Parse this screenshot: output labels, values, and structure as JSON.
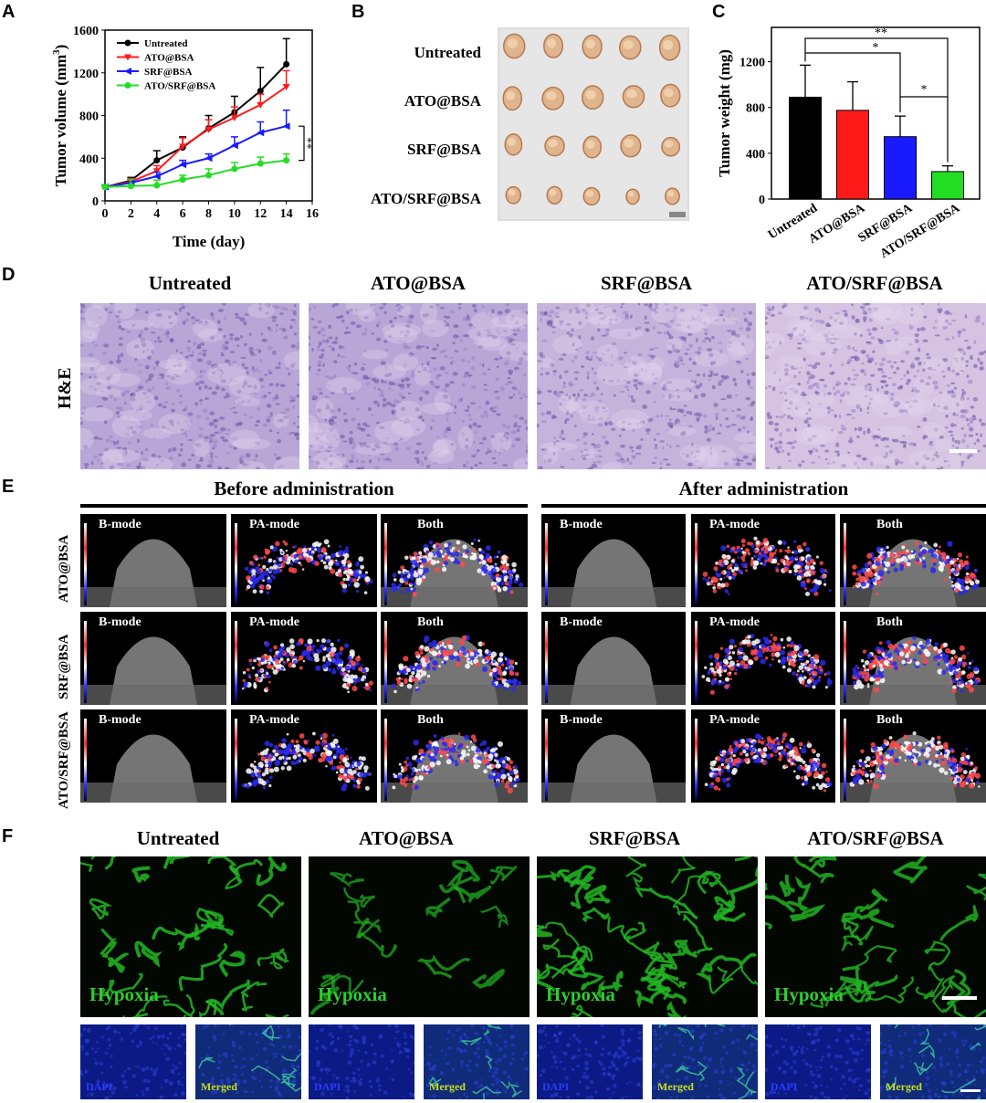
{
  "panels": {
    "a": "A",
    "b": "B",
    "c": "C",
    "d": "D",
    "e": "E",
    "f": "F"
  },
  "groups": [
    "Untreated",
    "ATO@BSA",
    "SRF@BSA",
    "ATO/SRF@BSA"
  ],
  "colors": {
    "untreated": "#000000",
    "ato": "#ff1a1a",
    "srf": "#1a1aff",
    "combo": "#22dd22"
  },
  "chart_data": [
    {
      "type": "line",
      "xlabel": "Time (day)",
      "ylabel": "Tumor volume (mm³)",
      "ylabel_main": "Tumor volume (mm",
      "ylabel_sup": "3",
      "ylabel_end": ")",
      "x": [
        0,
        2,
        4,
        6,
        8,
        10,
        12,
        14
      ],
      "xlim": [
        0,
        16
      ],
      "ylim": [
        0,
        1600
      ],
      "xticks": [
        0,
        2,
        4,
        6,
        8,
        10,
        12,
        14,
        16
      ],
      "yticks": [
        0,
        400,
        800,
        1200,
        1600
      ],
      "legend": "top-left",
      "series": [
        {
          "name": "Untreated",
          "color": "#000000",
          "marker": "circle",
          "values": [
            130,
            190,
            380,
            500,
            680,
            830,
            1030,
            1280
          ],
          "errors": [
            20,
            30,
            90,
            100,
            120,
            150,
            220,
            240
          ]
        },
        {
          "name": "ATO@BSA",
          "color": "#ff1a1a",
          "marker": "triangle-down",
          "values": [
            130,
            180,
            280,
            510,
            670,
            780,
            900,
            1070
          ],
          "errors": [
            20,
            30,
            50,
            80,
            90,
            100,
            100,
            150
          ]
        },
        {
          "name": "SRF@BSA",
          "color": "#1a1aff",
          "marker": "triangle-left",
          "values": [
            130,
            170,
            230,
            340,
            400,
            520,
            640,
            700
          ],
          "errors": [
            20,
            30,
            40,
            40,
            40,
            80,
            100,
            150
          ]
        },
        {
          "name": "ATO/SRF@BSA",
          "color": "#22dd22",
          "marker": "circle",
          "values": [
            130,
            140,
            145,
            200,
            240,
            300,
            350,
            380
          ],
          "errors": [
            20,
            60,
            50,
            40,
            60,
            60,
            60,
            60
          ]
        }
      ],
      "significance": "**"
    },
    {
      "type": "bar",
      "ylabel": "Tumor weight (mg)",
      "categories": [
        "Untreated",
        "ATO@BSA",
        "SRF@BSA",
        "ATO/SRF@BSA"
      ],
      "values": [
        890,
        775,
        545,
        240
      ],
      "errors": [
        280,
        250,
        180,
        50
      ],
      "colors": [
        "#000000",
        "#ff1a1a",
        "#1a1aff",
        "#22dd22"
      ],
      "ylim": [
        0,
        1500
      ],
      "yticks": [
        0,
        400,
        800,
        1200
      ],
      "significance": [
        {
          "from": 0,
          "to": 3,
          "label": "**"
        },
        {
          "from": 0,
          "to": 2,
          "label": "*"
        },
        {
          "from": 2,
          "to": 3,
          "label": "*"
        }
      ]
    }
  ],
  "panel_b": {
    "rows": [
      "Untreated",
      "ATO@BSA",
      "SRF@BSA",
      "ATO/SRF@BSA"
    ]
  },
  "panel_d": {
    "row_label": "H&E"
  },
  "panel_e": {
    "before": "Before administration",
    "after": "After administration",
    "rows": [
      "ATO@BSA",
      "SRF@BSA",
      "ATO/SRF@BSA"
    ],
    "modes": [
      "B-mode",
      "PA-mode",
      "Both"
    ]
  },
  "panel_f": {
    "hypoxia": "Hypoxia",
    "dapi": "DAPI",
    "merged": "Merged"
  }
}
